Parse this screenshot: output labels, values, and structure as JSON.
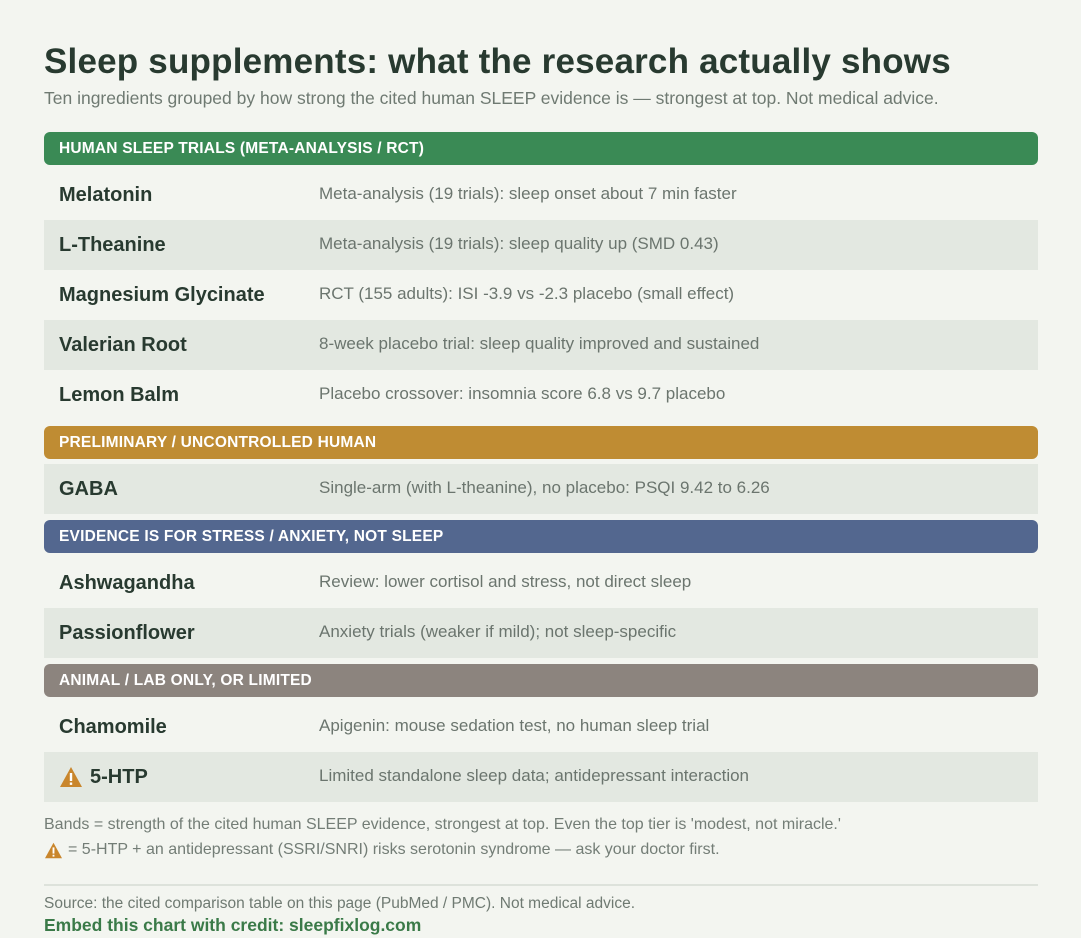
{
  "header": {
    "title": "Sleep supplements: what the research actually shows",
    "subtitle": "Ten ingredients grouped by how strong the cited human SLEEP evidence is — strongest at top. Not medical advice."
  },
  "colors": {
    "band_green": "#3a8a55",
    "band_gold": "#bf8c33",
    "band_blue": "#53678f",
    "band_gray": "#8c847e",
    "warning": "#c9862c"
  },
  "bands": [
    {
      "label": "HUMAN SLEEP TRIALS (META-ANALYSIS / RCT)",
      "color": "#3a8a55",
      "rows": [
        {
          "name": "Melatonin",
          "evidence": "Meta-analysis (19 trials): sleep onset about 7 min faster"
        },
        {
          "name": "L-Theanine",
          "evidence": "Meta-analysis (19 trials): sleep quality up (SMD 0.43)"
        },
        {
          "name": "Magnesium Glycinate",
          "evidence": "RCT (155 adults): ISI -3.9 vs -2.3 placebo (small effect)"
        },
        {
          "name": "Valerian Root",
          "evidence": "8-week placebo trial: sleep quality improved and sustained"
        },
        {
          "name": "Lemon Balm",
          "evidence": "Placebo crossover: insomnia score 6.8 vs 9.7 placebo"
        }
      ]
    },
    {
      "label": "PRELIMINARY / UNCONTROLLED HUMAN",
      "color": "#bf8c33",
      "rows": [
        {
          "name": "GABA",
          "evidence": "Single-arm (with L-theanine), no placebo: PSQI 9.42 to 6.26"
        }
      ]
    },
    {
      "label": "EVIDENCE IS FOR STRESS / ANXIETY, NOT SLEEP",
      "color": "#53678f",
      "rows": [
        {
          "name": "Ashwagandha",
          "evidence": "Review: lower cortisol and stress, not direct sleep"
        },
        {
          "name": "Passionflower",
          "evidence": "Anxiety trials (weaker if mild); not sleep-specific"
        }
      ]
    },
    {
      "label": "ANIMAL / LAB ONLY, OR LIMITED",
      "color": "#8c847e",
      "rows": [
        {
          "name": "Chamomile",
          "evidence": "Apigenin: mouse sedation test, no human sleep trial"
        },
        {
          "name": "5-HTP",
          "evidence": "Limited standalone sleep data; antidepressant interaction",
          "icon": "warning-triangle-icon"
        }
      ]
    }
  ],
  "notes": {
    "bands_note": "Bands = strength of the cited human SLEEP evidence, strongest at top. Even the top tier is 'modest, not miracle.'",
    "warning_note": "= 5-HTP + an antidepressant (SSRI/SNRI) risks serotonin syndrome — ask your doctor first.",
    "warning_icon": "warning-triangle-icon"
  },
  "footer": {
    "source": "Source: the cited comparison table on this page (PubMed / PMC). Not medical advice.",
    "credit": "Embed this chart with credit: sleepfixlog.com"
  }
}
